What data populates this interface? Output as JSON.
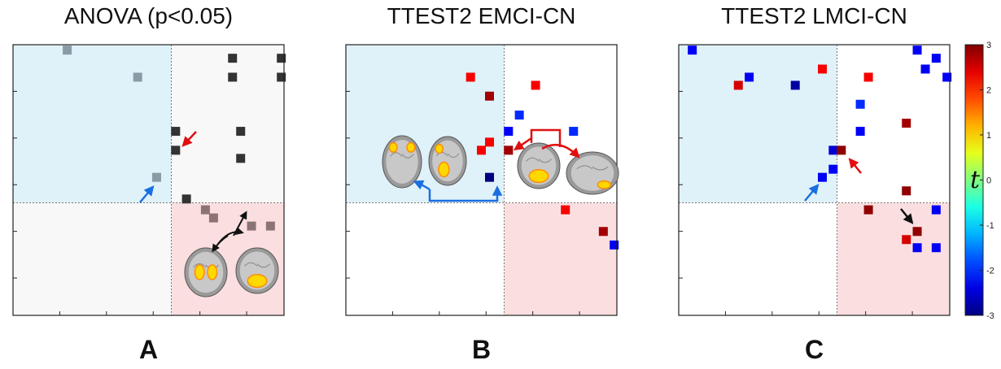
{
  "panels": [
    {
      "title": "ANOVA (p<0.05)",
      "letter": "A"
    },
    {
      "title": "TTEST2 EMCI-CN",
      "letter": "B"
    },
    {
      "title": "TTEST2 LMCI-CN",
      "letter": "C"
    }
  ],
  "colorbar": {
    "label": "t",
    "ticks": [
      "3",
      "2",
      "1",
      "0",
      "-1",
      "-2",
      "-3"
    ]
  },
  "colors": {
    "quadrant_top_left": "#dff2fa",
    "quadrant_bottom_right": "#fbdfe0",
    "quadrant_neutral": "#f8f8f8",
    "arrow_red": "#e01010",
    "arrow_blue": "#1a6fe0",
    "arrow_black": "#111111",
    "scale_high": "#8b0000",
    "scale_low": "#00008b"
  },
  "chart_data": [
    {
      "type": "heatmap",
      "title": "ANOVA (p<0.05)",
      "value_kind": "gray shade (darker = stronger)",
      "cells": [
        {
          "x": 0.2,
          "y": 0.02,
          "shade": "#8a9ba6"
        },
        {
          "x": 0.46,
          "y": 0.12,
          "shade": "#8a9ba6"
        },
        {
          "x": 0.81,
          "y": 0.05,
          "shade": "#333333"
        },
        {
          "x": 0.99,
          "y": 0.05,
          "shade": "#333333"
        },
        {
          "x": 0.81,
          "y": 0.12,
          "shade": "#333333"
        },
        {
          "x": 0.99,
          "y": 0.12,
          "shade": "#333333"
        },
        {
          "x": 0.6,
          "y": 0.32,
          "shade": "#333333"
        },
        {
          "x": 0.84,
          "y": 0.32,
          "shade": "#333333"
        },
        {
          "x": 0.6,
          "y": 0.39,
          "shade": "#333333"
        },
        {
          "x": 0.84,
          "y": 0.42,
          "shade": "#333333"
        },
        {
          "x": 0.53,
          "y": 0.49,
          "shade": "#8a9ba6"
        },
        {
          "x": 0.64,
          "y": 0.57,
          "shade": "#333333"
        },
        {
          "x": 0.71,
          "y": 0.61,
          "shade": "#8c7474"
        },
        {
          "x": 0.74,
          "y": 0.64,
          "shade": "#8c7474"
        },
        {
          "x": 0.88,
          "y": 0.67,
          "shade": "#8c7474"
        },
        {
          "x": 0.95,
          "y": 0.67,
          "shade": "#8c7474"
        }
      ]
    },
    {
      "type": "heatmap",
      "title": "TTEST2 EMCI-CN",
      "value_kind": "t",
      "clim": [
        -3,
        3
      ],
      "cells": [
        {
          "x": 0.46,
          "y": 0.12,
          "t": 2.3
        },
        {
          "x": 0.53,
          "y": 0.19,
          "t": 2.8
        },
        {
          "x": 0.7,
          "y": 0.15,
          "t": 2.3
        },
        {
          "x": 0.64,
          "y": 0.26,
          "t": -2.0
        },
        {
          "x": 0.6,
          "y": 0.32,
          "t": -2.3
        },
        {
          "x": 0.84,
          "y": 0.32,
          "t": -2.0
        },
        {
          "x": 0.53,
          "y": 0.36,
          "t": 2.3
        },
        {
          "x": 0.5,
          "y": 0.39,
          "t": 2.3
        },
        {
          "x": 0.6,
          "y": 0.39,
          "t": 2.8
        },
        {
          "x": 0.53,
          "y": 0.49,
          "t": -3.0
        },
        {
          "x": 0.81,
          "y": 0.61,
          "t": 2.3
        },
        {
          "x": 0.95,
          "y": 0.69,
          "t": 2.8
        },
        {
          "x": 0.99,
          "y": 0.74,
          "t": -2.3
        }
      ]
    },
    {
      "type": "heatmap",
      "title": "TTEST2 LMCI-CN",
      "value_kind": "t",
      "clim": [
        -3,
        3
      ],
      "cells": [
        {
          "x": 0.05,
          "y": 0.02,
          "t": -2.3
        },
        {
          "x": 0.88,
          "y": 0.02,
          "t": -2.3
        },
        {
          "x": 0.95,
          "y": 0.05,
          "t": -2.3
        },
        {
          "x": 0.91,
          "y": 0.09,
          "t": -2.3
        },
        {
          "x": 0.53,
          "y": 0.09,
          "t": 2.3
        },
        {
          "x": 0.26,
          "y": 0.12,
          "t": -2.3
        },
        {
          "x": 0.7,
          "y": 0.12,
          "t": 2.3
        },
        {
          "x": 0.99,
          "y": 0.12,
          "t": -2.3
        },
        {
          "x": 0.22,
          "y": 0.15,
          "t": 2.5
        },
        {
          "x": 0.43,
          "y": 0.15,
          "t": -2.8
        },
        {
          "x": 0.67,
          "y": 0.22,
          "t": -2.0
        },
        {
          "x": 0.84,
          "y": 0.29,
          "t": 2.8
        },
        {
          "x": 0.67,
          "y": 0.32,
          "t": -2.3
        },
        {
          "x": 0.57,
          "y": 0.39,
          "t": -2.5
        },
        {
          "x": 0.6,
          "y": 0.39,
          "t": 2.9
        },
        {
          "x": 0.57,
          "y": 0.46,
          "t": -2.3
        },
        {
          "x": 0.53,
          "y": 0.49,
          "t": -2.3
        },
        {
          "x": 0.84,
          "y": 0.54,
          "t": 2.9
        },
        {
          "x": 0.7,
          "y": 0.61,
          "t": 2.9
        },
        {
          "x": 0.95,
          "y": 0.61,
          "t": -2.3
        },
        {
          "x": 0.88,
          "y": 0.69,
          "t": 2.9
        },
        {
          "x": 0.84,
          "y": 0.72,
          "t": 2.5
        },
        {
          "x": 0.88,
          "y": 0.75,
          "t": -2.3
        },
        {
          "x": 0.95,
          "y": 0.75,
          "t": -2.3
        }
      ]
    }
  ]
}
